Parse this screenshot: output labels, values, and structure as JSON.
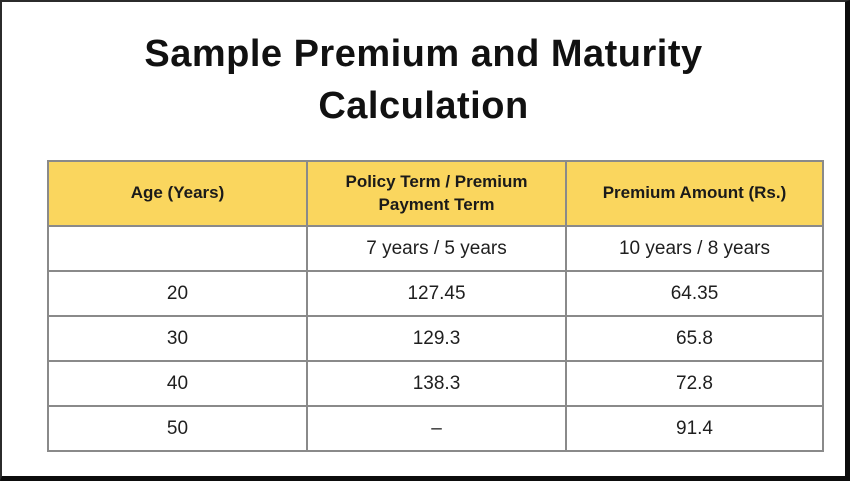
{
  "page": {
    "title_line1": "Sample Premium and Maturity",
    "title_line2": "Calculation"
  },
  "colors": {
    "header_bg": "#fad65e",
    "grid_line": "#8a8a8a",
    "page_border": "#0c0c0c",
    "title_text": "#111111",
    "body_text": "#1f1f1f"
  },
  "table": {
    "headers": [
      "Age (Years)",
      "Policy Term / Premium Payment Term",
      "Premium Amount (Rs.)"
    ],
    "subheader": [
      "",
      "7 years / 5 years",
      "10 years / 8 years"
    ],
    "rows": [
      [
        "20",
        "127.45",
        "64.35"
      ],
      [
        "30",
        "129.3",
        "65.8"
      ],
      [
        "40",
        "138.3",
        "72.8"
      ],
      [
        "50",
        "–",
        "91.4"
      ]
    ]
  }
}
